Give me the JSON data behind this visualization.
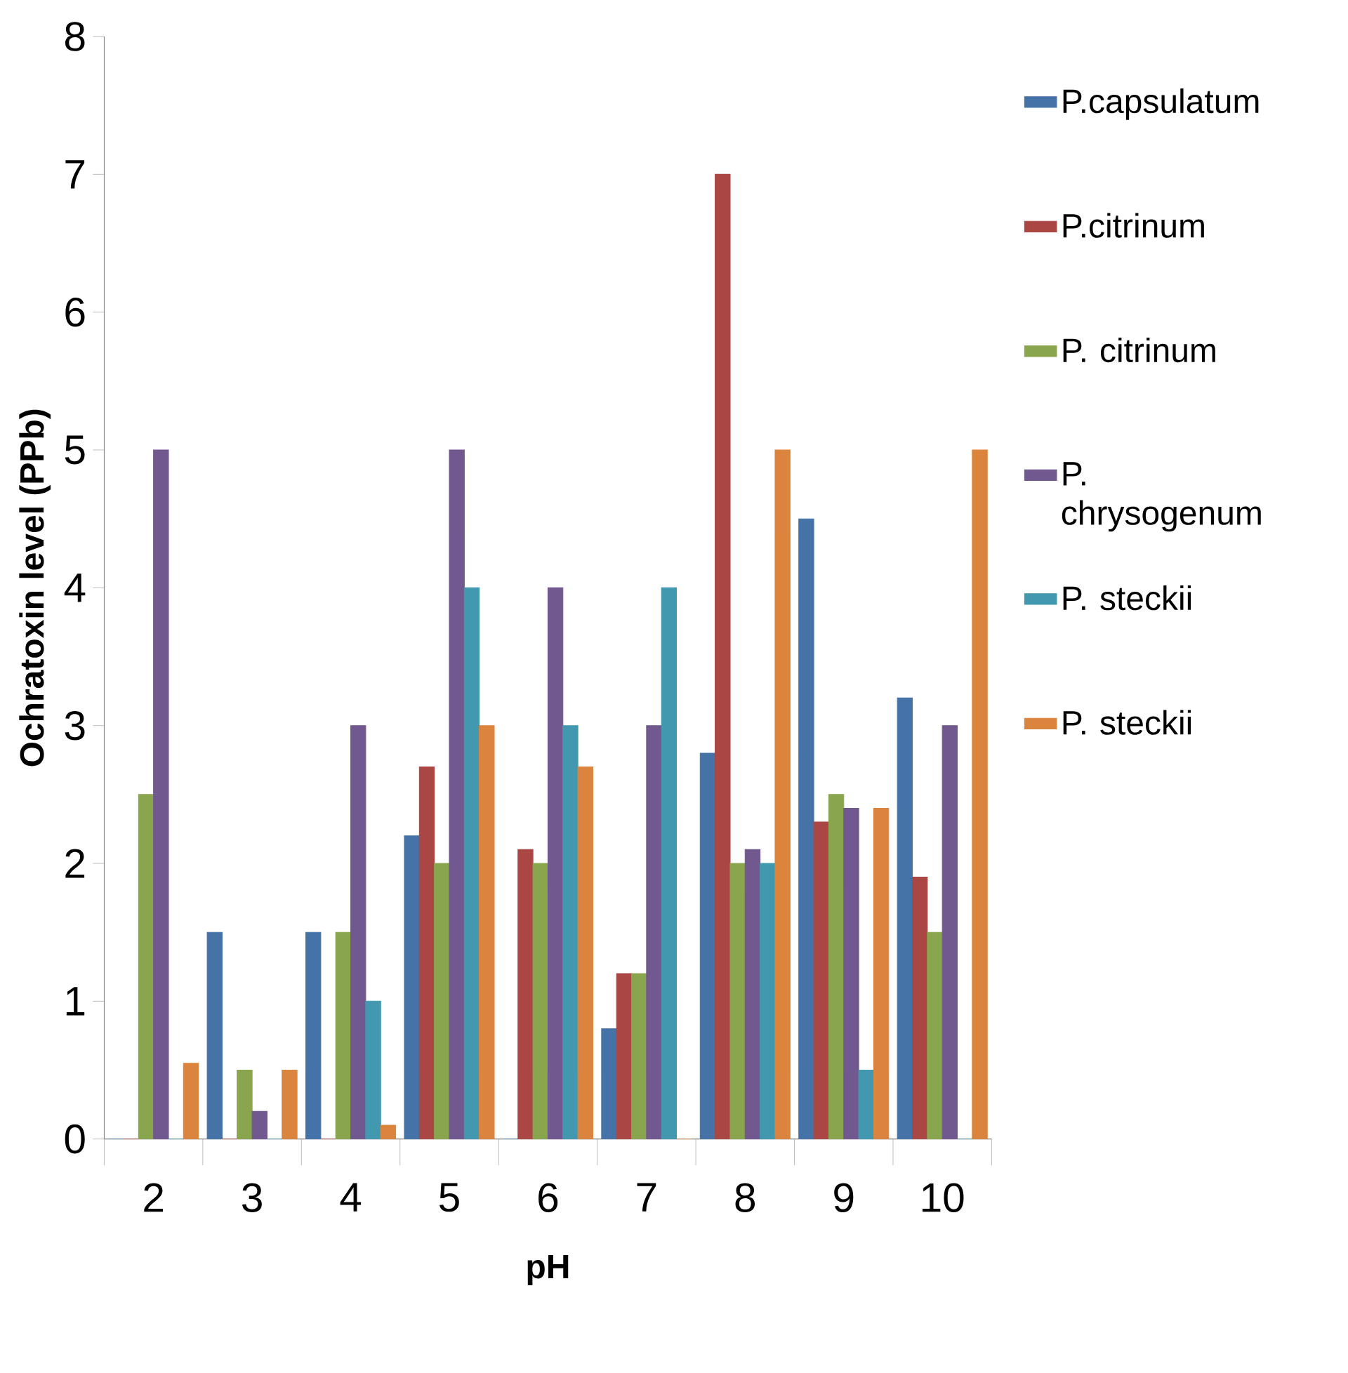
{
  "chart_data": {
    "type": "bar",
    "xlabel": "pH",
    "ylabel": "Ochratoxin level (PPb)",
    "categories": [
      "2",
      "3",
      "4",
      "5",
      "6",
      "7",
      "8",
      "9",
      "10"
    ],
    "series": [
      {
        "name": "P.capsulatum",
        "color": "#4573a7",
        "values": [
          0,
          1.5,
          1.5,
          2.2,
          0,
          0.8,
          2.8,
          4.5,
          3.2
        ]
      },
      {
        "name": "P.citrinum",
        "color": "#aa4644",
        "values": [
          0,
          0,
          0,
          2.7,
          2.1,
          1.2,
          7,
          2.3,
          1.9
        ]
      },
      {
        "name": "P. citrinum",
        "color": "#89a54e",
        "values": [
          2.5,
          0.5,
          1.5,
          2,
          2,
          1.2,
          2,
          2.5,
          1.5
        ]
      },
      {
        "name": "P. chrysogenum",
        "color": "#71588f",
        "values": [
          5,
          0.2,
          3,
          5,
          4,
          3,
          2.1,
          2.4,
          3
        ]
      },
      {
        "name": "P. steckii",
        "color": "#4198af",
        "values": [
          0,
          0,
          1,
          4,
          3,
          4,
          2,
          0.5,
          0
        ]
      },
      {
        "name": "P. steckii",
        "color": "#db843d",
        "values": [
          0.55,
          0.5,
          0.1,
          3,
          2.7,
          0,
          5,
          2.4,
          5
        ]
      }
    ],
    "ylim": [
      0,
      8
    ],
    "yticks": [
      0,
      1,
      2,
      3,
      4,
      5,
      6,
      7,
      8
    ],
    "grid": false,
    "legend": "right"
  }
}
